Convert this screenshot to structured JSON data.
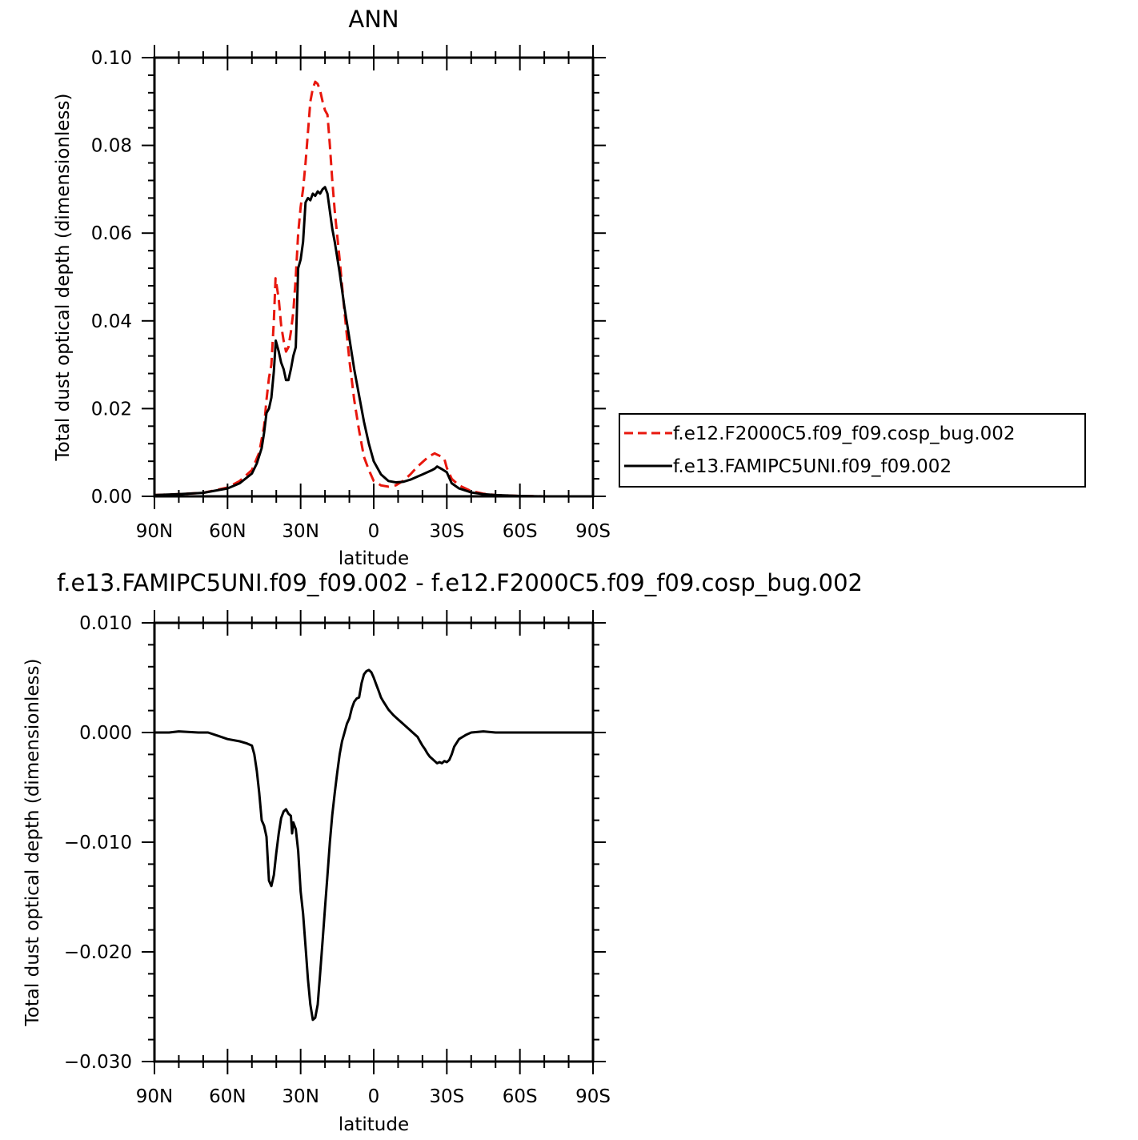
{
  "chart_data": [
    {
      "type": "line",
      "title": "ANN",
      "xlabel": "latitude",
      "ylabel": "Total dust optical depth (dimensionless)",
      "xlim": [
        90,
        -90
      ],
      "ylim": [
        0.0,
        0.1
      ],
      "xticks": [
        90,
        60,
        30,
        0,
        -30,
        -60,
        -90
      ],
      "xtick_labels": [
        "90N",
        "60N",
        "30N",
        "0",
        "30S",
        "60S",
        "90S"
      ],
      "yticks": [
        0.0,
        0.02,
        0.04,
        0.06,
        0.08,
        0.1
      ],
      "ytick_labels": [
        "0.00",
        "0.02",
        "0.04",
        "0.06",
        "0.08",
        "0.10"
      ],
      "grid": false,
      "legend_position": "right",
      "series": [
        {
          "name": "f.e12.F2000C5.f09_f09.cosp_bug.002",
          "color": "#e8170d",
          "dash": "dashed",
          "x": [
            90,
            80,
            70,
            60,
            55,
            50,
            47,
            45,
            44,
            43,
            42,
            41,
            40.3,
            39,
            38,
            37,
            36,
            35,
            34,
            33,
            32,
            31,
            30,
            29,
            28,
            27,
            26,
            25,
            24,
            23,
            22,
            21,
            20,
            19,
            18,
            17,
            16,
            14,
            12,
            10,
            8,
            6,
            4,
            2,
            0,
            -3,
            -6,
            -9,
            -12,
            -15,
            -18,
            -20,
            -22,
            -24,
            -25,
            -26,
            -28,
            -29,
            -30,
            -32,
            -35,
            -40,
            -45,
            -50,
            -60,
            -70,
            -80,
            -90
          ],
          "y": [
            0.0003,
            0.0005,
            0.0008,
            0.002,
            0.0035,
            0.006,
            0.01,
            0.016,
            0.022,
            0.027,
            0.03,
            0.04,
            0.0497,
            0.045,
            0.039,
            0.0355,
            0.033,
            0.034,
            0.0375,
            0.042,
            0.05,
            0.06,
            0.066,
            0.07,
            0.076,
            0.083,
            0.09,
            0.093,
            0.0945,
            0.094,
            0.0925,
            0.09,
            0.088,
            0.087,
            0.08,
            0.072,
            0.065,
            0.054,
            0.042,
            0.031,
            0.022,
            0.015,
            0.009,
            0.006,
            0.0035,
            0.0025,
            0.0022,
            0.0025,
            0.0035,
            0.005,
            0.0068,
            0.0078,
            0.0088,
            0.0095,
            0.0098,
            0.0095,
            0.009,
            0.0085,
            0.0065,
            0.004,
            0.0025,
            0.0012,
            0.0006,
            0.0003,
            0.0001,
            0.0,
            0.0,
            0.0
          ]
        },
        {
          "name": "f.e13.FAMIPC5UNI.f09_f09.002",
          "color": "#000000",
          "dash": "solid",
          "x": [
            90,
            80,
            70,
            60,
            55,
            50,
            48,
            46,
            45,
            44,
            43,
            42,
            41,
            40.2,
            39,
            38,
            37,
            36,
            35,
            34,
            33,
            32,
            31,
            30,
            29,
            28,
            27,
            26,
            25,
            24,
            23,
            22,
            21,
            20,
            19,
            18,
            17,
            16,
            14,
            12,
            10,
            8,
            6,
            4,
            2,
            0,
            -3,
            -6,
            -9,
            -12,
            -15,
            -18,
            -20,
            -22,
            -24,
            -25,
            -26,
            -28,
            -30,
            -32,
            -35,
            -40,
            -45,
            -50,
            -60,
            -70,
            -80,
            -90
          ],
          "y": [
            0.0003,
            0.0005,
            0.0008,
            0.0018,
            0.003,
            0.0052,
            0.0075,
            0.011,
            0.0145,
            0.019,
            0.02,
            0.0225,
            0.0285,
            0.0355,
            0.033,
            0.0305,
            0.029,
            0.0265,
            0.0265,
            0.029,
            0.032,
            0.034,
            0.052,
            0.054,
            0.058,
            0.067,
            0.068,
            0.0675,
            0.069,
            0.0685,
            0.0695,
            0.069,
            0.07,
            0.0705,
            0.069,
            0.065,
            0.061,
            0.058,
            0.051,
            0.043,
            0.036,
            0.029,
            0.023,
            0.017,
            0.012,
            0.008,
            0.005,
            0.0035,
            0.0032,
            0.0033,
            0.0038,
            0.0045,
            0.005,
            0.0055,
            0.006,
            0.0063,
            0.0068,
            0.0062,
            0.0055,
            0.003,
            0.0018,
            0.0009,
            0.0005,
            0.0003,
            0.0001,
            0.0,
            0.0,
            0.0
          ]
        }
      ]
    },
    {
      "type": "line",
      "title": "f.e13.FAMIPC5UNI.f09_f09.002 - f.e12.F2000C5.f09_f09.cosp_bug.002",
      "xlabel": "latitude",
      "ylabel": "Total dust optical depth (dimensionless)",
      "xlim": [
        90,
        -90
      ],
      "ylim": [
        -0.03,
        0.01
      ],
      "xticks": [
        90,
        60,
        30,
        0,
        -30,
        -60,
        -90
      ],
      "xtick_labels": [
        "90N",
        "60N",
        "30N",
        "0",
        "30S",
        "60S",
        "90S"
      ],
      "yticks": [
        -0.03,
        -0.02,
        -0.01,
        0.0,
        0.01
      ],
      "ytick_labels": [
        "−0.030",
        "−0.020",
        "−0.010",
        "0.000",
        "0.010"
      ],
      "grid": false,
      "series": [
        {
          "color": "#000000",
          "dash": "solid",
          "x": [
            90,
            84,
            80,
            72,
            68,
            64,
            60,
            55,
            52,
            50,
            49,
            48,
            47,
            46,
            45,
            44,
            43,
            42,
            41,
            40,
            39,
            38,
            37,
            36,
            35,
            34,
            33.5,
            33,
            32,
            31,
            30,
            29,
            28,
            27,
            26,
            25,
            24,
            23,
            22,
            21,
            20,
            19,
            18,
            17,
            16,
            15,
            14,
            13,
            12,
            11,
            10,
            9,
            8,
            7,
            6,
            5,
            4,
            3,
            2,
            1,
            0,
            -1,
            -2,
            -3,
            -4,
            -6,
            -8,
            -10,
            -12,
            -14,
            -16,
            -18,
            -19,
            -20,
            -21,
            -22,
            -23,
            -24,
            -25,
            -26,
            -27,
            -28,
            -29,
            -30,
            -31,
            -32,
            -33,
            -35,
            -38,
            -40,
            -45,
            -50,
            -60,
            -70,
            -80,
            -90
          ],
          "y": [
            0.0,
            0.0,
            0.0001,
            0.0,
            0.0,
            -0.0003,
            -0.0006,
            -0.0008,
            -0.001,
            -0.0012,
            -0.002,
            -0.0035,
            -0.0055,
            -0.008,
            -0.0085,
            -0.0095,
            -0.0135,
            -0.014,
            -0.013,
            -0.011,
            -0.0092,
            -0.0078,
            -0.0072,
            -0.007,
            -0.0074,
            -0.0076,
            -0.0092,
            -0.0082,
            -0.0088,
            -0.0108,
            -0.0145,
            -0.0165,
            -0.0195,
            -0.0225,
            -0.0248,
            -0.0262,
            -0.026,
            -0.0248,
            -0.022,
            -0.019,
            -0.016,
            -0.013,
            -0.01,
            -0.0075,
            -0.0055,
            -0.0037,
            -0.002,
            -0.0008,
            0.0,
            0.0008,
            0.0013,
            0.0022,
            0.0028,
            0.0031,
            0.0032,
            0.0045,
            0.0053,
            0.0056,
            0.0057,
            0.0055,
            0.005,
            0.0044,
            0.0038,
            0.0032,
            0.0028,
            0.0021,
            0.0016,
            0.0012,
            0.0008,
            0.0004,
            0.0,
            -0.0004,
            -0.0008,
            -0.0012,
            -0.0015,
            -0.0019,
            -0.0022,
            -0.0024,
            -0.0026,
            -0.0028,
            -0.0027,
            -0.0028,
            -0.0026,
            -0.0027,
            -0.0025,
            -0.002,
            -0.0013,
            -0.0006,
            -0.0002,
            0.0,
            0.0001,
            0.0,
            0.0,
            0.0,
            0.0,
            0.0
          ]
        }
      ]
    }
  ]
}
